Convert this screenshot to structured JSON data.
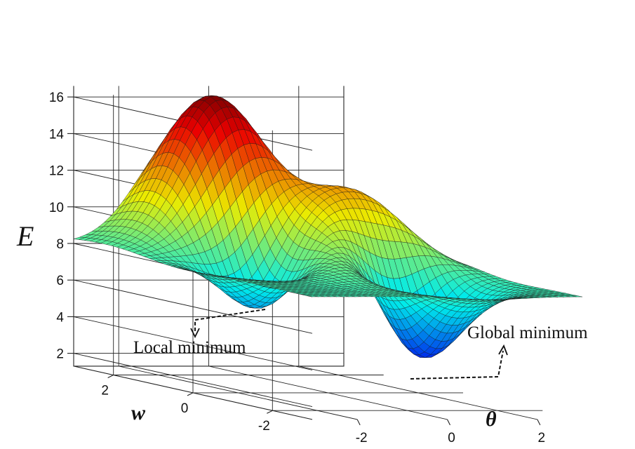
{
  "chart_data": {
    "type": "surface3d",
    "title": "",
    "zlabel": "E",
    "xlabel": "w",
    "ylabel": "θ",
    "w_ticks": [
      {
        "value": 2,
        "label": "2"
      },
      {
        "value": 0,
        "label": "0"
      },
      {
        "value": -2,
        "label": "-2"
      }
    ],
    "theta_ticks": [
      {
        "value": -2,
        "label": "-2"
      },
      {
        "value": 0,
        "label": "0"
      },
      {
        "value": 2,
        "label": "2"
      }
    ],
    "z_ticks": [
      {
        "value": 2,
        "label": "2"
      },
      {
        "value": 4,
        "label": "4"
      },
      {
        "value": 6,
        "label": "6"
      },
      {
        "value": 8,
        "label": "8"
      },
      {
        "value": 10,
        "label": "10"
      },
      {
        "value": 12,
        "label": "12"
      },
      {
        "value": 14,
        "label": "14"
      },
      {
        "value": 16,
        "label": "16"
      }
    ],
    "wlim": [
      -3,
      3
    ],
    "thetalim": [
      -3,
      3
    ],
    "zlim": [
      1.3,
      16.6
    ],
    "baseline": 8,
    "grid": true,
    "colormap": "jet",
    "surface_features": [
      {
        "kind": "peak",
        "w": 2.2,
        "theta": -0.6,
        "E": 16.5
      },
      {
        "kind": "peak",
        "w": 0.3,
        "theta": 1.2,
        "E": 12.0
      },
      {
        "kind": "peak",
        "w": -0.5,
        "theta": 0.1,
        "E": 11.0
      },
      {
        "kind": "local-minimum",
        "w": 0.4,
        "theta": -1.2,
        "E": 4.4
      },
      {
        "kind": "global-minimum",
        "w": -1.0,
        "theta": 0.9,
        "E": 1.5
      }
    ],
    "annotations": {
      "local_minimum": "Local minimum",
      "global_minimum": "Global minimum"
    }
  }
}
